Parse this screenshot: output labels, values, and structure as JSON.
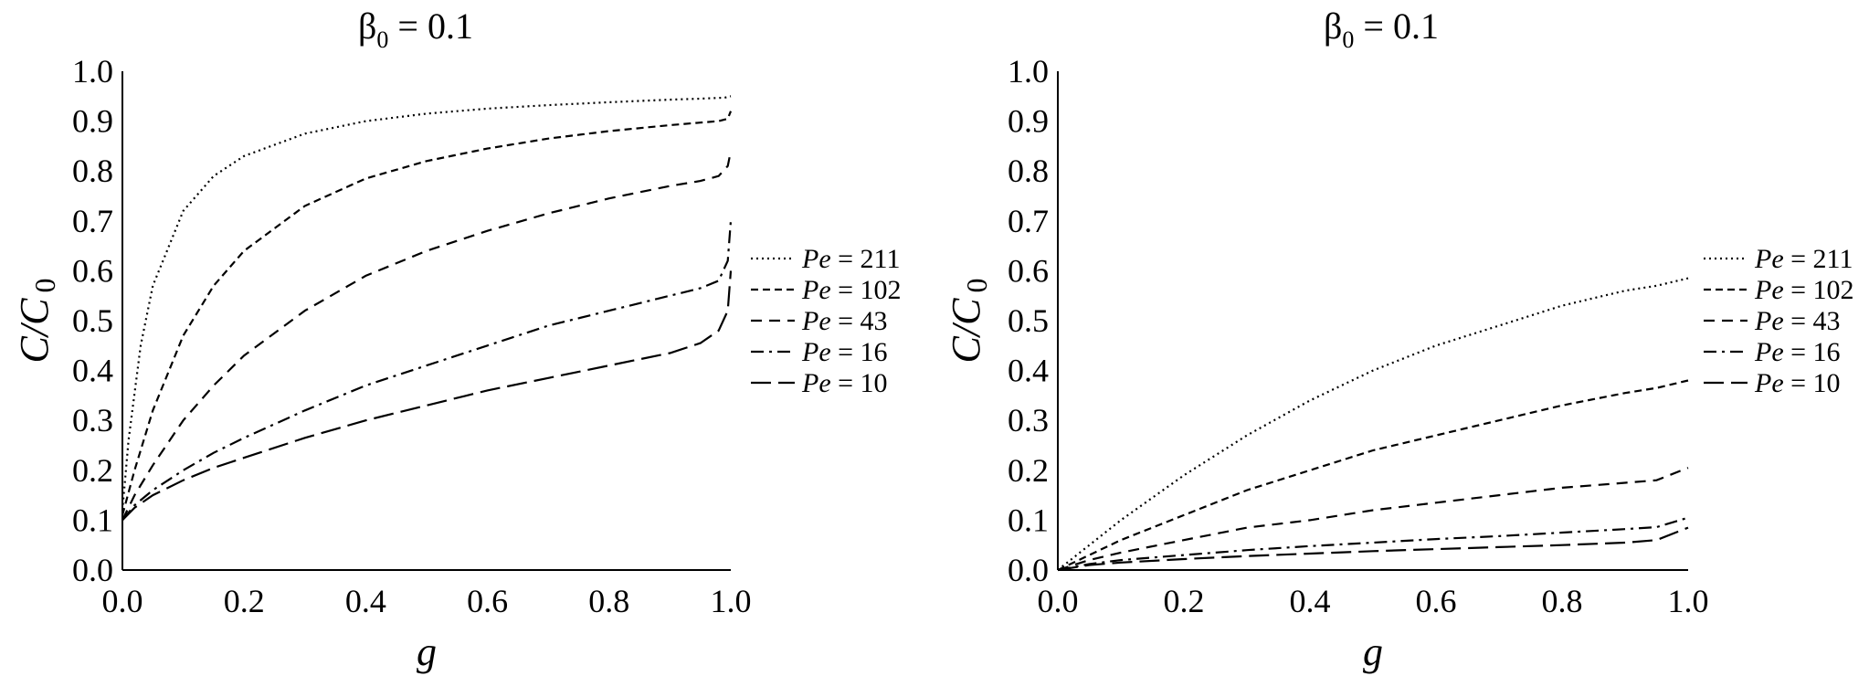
{
  "chart_data": [
    {
      "type": "line",
      "title": "β₀ = 0.1",
      "title_base": "β",
      "title_sub": "0",
      "title_rest": " = 0.1",
      "xlabel": "g",
      "ylabel": "C/C₀",
      "ylabel_main": "C/C",
      "ylabel_sub": "0",
      "xlim": [
        0,
        1
      ],
      "ylim": [
        0,
        1
      ],
      "xticks": [
        "0.0",
        "0.2",
        "0.4",
        "0.6",
        "0.8",
        "1.0"
      ],
      "yticks": [
        "0.0",
        "0.1",
        "0.2",
        "0.3",
        "0.4",
        "0.5",
        "0.6",
        "0.7",
        "0.8",
        "0.9",
        "1.0"
      ],
      "grid": false,
      "legend_position": "right",
      "series": [
        {
          "name": "Pe = 211",
          "name_var": "Pe",
          "name_val": " = 211",
          "dash": "dotted",
          "x": [
            0,
            0.01,
            0.03,
            0.05,
            0.1,
            0.15,
            0.2,
            0.3,
            0.4,
            0.5,
            0.6,
            0.7,
            0.8,
            0.9,
            0.95,
            0.99,
            1.0
          ],
          "y": [
            0.12,
            0.26,
            0.45,
            0.57,
            0.72,
            0.79,
            0.83,
            0.875,
            0.9,
            0.915,
            0.925,
            0.932,
            0.938,
            0.943,
            0.945,
            0.947,
            0.95
          ]
        },
        {
          "name": "Pe = 102",
          "name_var": "Pe",
          "name_val": " = 102",
          "dash": "short-dash",
          "x": [
            0,
            0.02,
            0.05,
            0.1,
            0.15,
            0.2,
            0.3,
            0.4,
            0.5,
            0.6,
            0.7,
            0.8,
            0.9,
            0.95,
            0.98,
            0.995,
            1.0
          ],
          "y": [
            0.11,
            0.2,
            0.32,
            0.47,
            0.57,
            0.64,
            0.73,
            0.785,
            0.82,
            0.845,
            0.865,
            0.88,
            0.892,
            0.897,
            0.9,
            0.905,
            0.92
          ]
        },
        {
          "name": "Pe = 43",
          "name_var": "Pe",
          "name_val": " = 43",
          "dash": "dash",
          "x": [
            0,
            0.02,
            0.05,
            0.1,
            0.15,
            0.2,
            0.3,
            0.4,
            0.5,
            0.6,
            0.7,
            0.8,
            0.9,
            0.95,
            0.98,
            0.995,
            1.0
          ],
          "y": [
            0.1,
            0.15,
            0.21,
            0.3,
            0.37,
            0.43,
            0.52,
            0.59,
            0.64,
            0.68,
            0.715,
            0.745,
            0.77,
            0.78,
            0.79,
            0.81,
            0.84
          ]
        },
        {
          "name": "Pe = 16",
          "name_var": "Pe",
          "name_val": " = 16",
          "dash": "dash-dot",
          "x": [
            0,
            0.02,
            0.05,
            0.1,
            0.15,
            0.2,
            0.3,
            0.4,
            0.5,
            0.6,
            0.7,
            0.8,
            0.9,
            0.95,
            0.98,
            0.995,
            1.0
          ],
          "y": [
            0.1,
            0.13,
            0.16,
            0.2,
            0.235,
            0.265,
            0.32,
            0.37,
            0.41,
            0.45,
            0.49,
            0.52,
            0.55,
            0.565,
            0.58,
            0.62,
            0.7
          ]
        },
        {
          "name": "Pe = 10",
          "name_var": "Pe",
          "name_val": " = 10",
          "dash": "long-dash",
          "x": [
            0,
            0.02,
            0.05,
            0.1,
            0.15,
            0.2,
            0.3,
            0.4,
            0.5,
            0.6,
            0.7,
            0.8,
            0.9,
            0.95,
            0.98,
            0.995,
            1.0
          ],
          "y": [
            0.1,
            0.125,
            0.15,
            0.18,
            0.205,
            0.225,
            0.265,
            0.3,
            0.33,
            0.36,
            0.385,
            0.41,
            0.435,
            0.455,
            0.48,
            0.52,
            0.6
          ]
        }
      ]
    },
    {
      "type": "line",
      "title": "β₀ = 0.1",
      "title_base": "β",
      "title_sub": "0",
      "title_rest": " = 0.1",
      "xlabel": "g",
      "ylabel": "C/C₀",
      "ylabel_main": "C/C",
      "ylabel_sub": "0",
      "xlim": [
        0,
        1
      ],
      "ylim": [
        0,
        1
      ],
      "xticks": [
        "0.0",
        "0.2",
        "0.4",
        "0.6",
        "0.8",
        "1.0"
      ],
      "yticks": [
        "0.0",
        "0.1",
        "0.2",
        "0.3",
        "0.4",
        "0.5",
        "0.6",
        "0.7",
        "0.8",
        "0.9",
        "1.0"
      ],
      "grid": false,
      "legend_position": "right",
      "series": [
        {
          "name": "Pe = 211",
          "name_var": "Pe",
          "name_val": " = 211",
          "dash": "dotted",
          "x": [
            0,
            0.05,
            0.1,
            0.2,
            0.3,
            0.4,
            0.5,
            0.6,
            0.7,
            0.8,
            0.9,
            0.95,
            1.0
          ],
          "y": [
            0.0,
            0.05,
            0.1,
            0.19,
            0.27,
            0.34,
            0.4,
            0.45,
            0.49,
            0.53,
            0.56,
            0.57,
            0.585
          ]
        },
        {
          "name": "Pe = 102",
          "name_var": "Pe",
          "name_val": " = 102",
          "dash": "short-dash",
          "x": [
            0,
            0.05,
            0.1,
            0.2,
            0.3,
            0.4,
            0.5,
            0.6,
            0.7,
            0.8,
            0.9,
            0.95,
            1.0
          ],
          "y": [
            0.0,
            0.03,
            0.06,
            0.11,
            0.16,
            0.2,
            0.24,
            0.27,
            0.3,
            0.33,
            0.355,
            0.365,
            0.38
          ]
        },
        {
          "name": "Pe = 43",
          "name_var": "Pe",
          "name_val": " = 43",
          "dash": "dash",
          "x": [
            0,
            0.05,
            0.1,
            0.2,
            0.3,
            0.4,
            0.5,
            0.6,
            0.7,
            0.8,
            0.9,
            0.95,
            1.0
          ],
          "y": [
            0.0,
            0.02,
            0.035,
            0.06,
            0.085,
            0.1,
            0.12,
            0.135,
            0.15,
            0.165,
            0.175,
            0.18,
            0.205
          ]
        },
        {
          "name": "Pe = 16",
          "name_var": "Pe",
          "name_val": " = 16",
          "dash": "dash-dot",
          "x": [
            0,
            0.05,
            0.1,
            0.2,
            0.3,
            0.4,
            0.5,
            0.6,
            0.7,
            0.8,
            0.9,
            0.95,
            1.0
          ],
          "y": [
            0.0,
            0.012,
            0.02,
            0.03,
            0.04,
            0.048,
            0.055,
            0.062,
            0.068,
            0.075,
            0.082,
            0.086,
            0.105
          ]
        },
        {
          "name": "Pe = 10",
          "name_var": "Pe",
          "name_val": " = 10",
          "dash": "long-dash",
          "x": [
            0,
            0.05,
            0.1,
            0.2,
            0.3,
            0.4,
            0.5,
            0.6,
            0.7,
            0.8,
            0.9,
            0.95,
            1.0
          ],
          "y": [
            0.0,
            0.01,
            0.015,
            0.022,
            0.028,
            0.033,
            0.038,
            0.042,
            0.046,
            0.05,
            0.055,
            0.06,
            0.085
          ]
        }
      ]
    }
  ]
}
